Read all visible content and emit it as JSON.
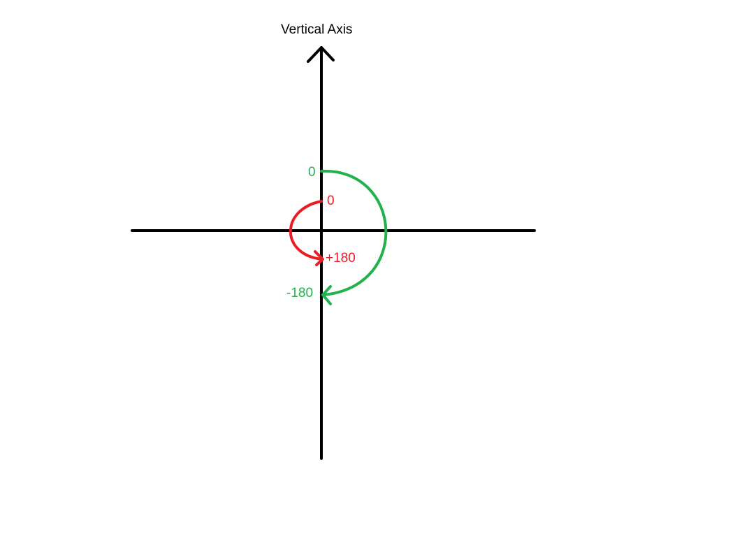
{
  "title": "Vertical Axis",
  "colors": {
    "axes": "#000000",
    "green_arc": "#22b14c",
    "red_arc": "#ed1c24",
    "background": "#ffffff"
  },
  "green_arc": {
    "start_label": "0",
    "end_label": "-180",
    "direction": "clockwise"
  },
  "red_arc": {
    "start_label": "0",
    "end_label": "+180",
    "direction": "counter-clockwise"
  }
}
